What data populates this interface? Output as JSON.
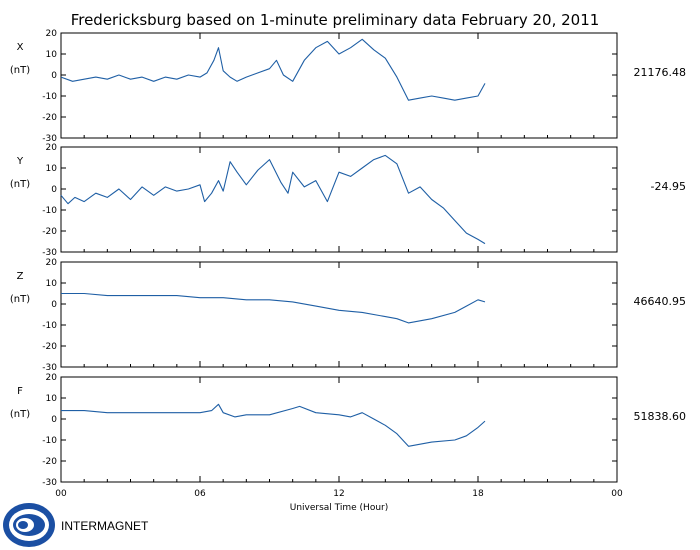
{
  "title": "Fredericksburg based on 1-minute preliminary data February 20, 2011",
  "x_axis": {
    "label": "Universal Time (Hour)",
    "ticks": [
      "00",
      "06",
      "12",
      "18",
      "00"
    ],
    "tick_hours": [
      0,
      6,
      12,
      18,
      24
    ],
    "range": [
      0,
      24
    ]
  },
  "y_axis": {
    "range": [
      -30,
      20
    ],
    "ticks": [
      20,
      10,
      0,
      -10,
      -20,
      -30
    ],
    "tick_labels": [
      "20",
      "10",
      "0",
      "-10",
      "-20",
      "-30"
    ],
    "unit_label": "(nT)"
  },
  "logo": {
    "text": "INTERMAGNET",
    "icon": "intermagnet-logo-icon"
  },
  "colors": {
    "line": "#1f5fa5",
    "axes": "#000000",
    "background": "#ffffff"
  },
  "chart_data": [
    {
      "type": "line",
      "component": "X",
      "baseline": "21176.48",
      "ylim": [
        -30,
        20
      ],
      "x": [
        0,
        0.5,
        1,
        1.5,
        2,
        2.5,
        3,
        3.5,
        4,
        4.5,
        5,
        5.5,
        6,
        6.3,
        6.6,
        6.8,
        7,
        7.3,
        7.6,
        8,
        8.5,
        9,
        9.3,
        9.6,
        10,
        10.5,
        11,
        11.5,
        12,
        12.5,
        13,
        13.5,
        14,
        14.5,
        15,
        15.5,
        16,
        16.5,
        17,
        17.5,
        18,
        18.3
      ],
      "y": [
        -1,
        -3,
        -2,
        -1,
        -2,
        0,
        -2,
        -1,
        -3,
        -1,
        -2,
        0,
        -1,
        1,
        7,
        13,
        2,
        -1,
        -3,
        -1,
        1,
        3,
        7,
        0,
        -3,
        7,
        13,
        16,
        10,
        13,
        17,
        12,
        8,
        -1,
        -12,
        -11,
        -10,
        -11,
        -12,
        -11,
        -10,
        -4
      ]
    },
    {
      "type": "line",
      "component": "Y",
      "baseline": "-24.95",
      "ylim": [
        -30,
        20
      ],
      "x": [
        0,
        0.3,
        0.6,
        1,
        1.5,
        2,
        2.5,
        3,
        3.5,
        4,
        4.5,
        5,
        5.5,
        6,
        6.2,
        6.5,
        6.8,
        7,
        7.3,
        7.6,
        8,
        8.5,
        9,
        9.5,
        9.8,
        10,
        10.5,
        11,
        11.5,
        12,
        12.5,
        13,
        13.5,
        14,
        14.5,
        15,
        15.5,
        16,
        16.5,
        17,
        17.5,
        18,
        18.3
      ],
      "y": [
        -3,
        -7,
        -4,
        -6,
        -2,
        -4,
        0,
        -5,
        1,
        -3,
        1,
        -1,
        0,
        2,
        -6,
        -2,
        4,
        -1,
        13,
        8,
        2,
        9,
        14,
        3,
        -2,
        8,
        1,
        4,
        -6,
        8,
        6,
        10,
        14,
        16,
        12,
        -2,
        1,
        -5,
        -9,
        -15,
        -21,
        -24,
        -26
      ]
    },
    {
      "type": "line",
      "component": "Z",
      "baseline": "46640.95",
      "ylim": [
        -30,
        20
      ],
      "x": [
        0,
        1,
        2,
        3,
        4,
        5,
        6,
        7,
        8,
        9,
        10,
        11,
        12,
        13,
        14,
        14.5,
        15,
        15.5,
        16,
        17,
        17.5,
        18,
        18.3
      ],
      "y": [
        5,
        5,
        4,
        4,
        4,
        4,
        3,
        3,
        2,
        2,
        1,
        -1,
        -3,
        -4,
        -6,
        -7,
        -9,
        -8,
        -7,
        -4,
        -1,
        2,
        1
      ]
    },
    {
      "type": "line",
      "component": "F",
      "baseline": "51838.60",
      "ylim": [
        -30,
        20
      ],
      "x": [
        0,
        1,
        2,
        3,
        4,
        5,
        6,
        6.5,
        6.8,
        7,
        7.5,
        8,
        9,
        10,
        10.3,
        11,
        12,
        12.5,
        13,
        13.5,
        14,
        14.5,
        15,
        15.5,
        16,
        17,
        17.5,
        18,
        18.3
      ],
      "y": [
        4,
        4,
        3,
        3,
        3,
        3,
        3,
        4,
        7,
        3,
        1,
        2,
        2,
        5,
        6,
        3,
        2,
        1,
        3,
        0,
        -3,
        -7,
        -13,
        -12,
        -11,
        -10,
        -8,
        -4,
        -1
      ]
    }
  ]
}
